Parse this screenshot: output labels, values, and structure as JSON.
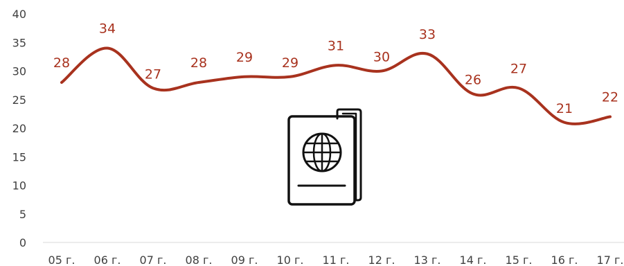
{
  "chart_data": {
    "type": "line",
    "categories": [
      "05 г.",
      "06 г.",
      "07 г.",
      "08 г.",
      "09 г.",
      "10 г.",
      "11 г.",
      "12 г.",
      "13 г.",
      "14 г.",
      "15 г.",
      "16 г.",
      "17 г."
    ],
    "series": [
      {
        "values": [
          28,
          34,
          27,
          28,
          29,
          29,
          31,
          30,
          33,
          26,
          27,
          21,
          22
        ],
        "color": "#a8321e"
      }
    ],
    "ylim": [
      0,
      40
    ],
    "yticks": [
      0,
      5,
      10,
      15,
      20,
      25,
      30,
      35,
      40
    ],
    "grid": false,
    "legend": "none",
    "data_labels": true,
    "decoration": "passport-icon"
  }
}
